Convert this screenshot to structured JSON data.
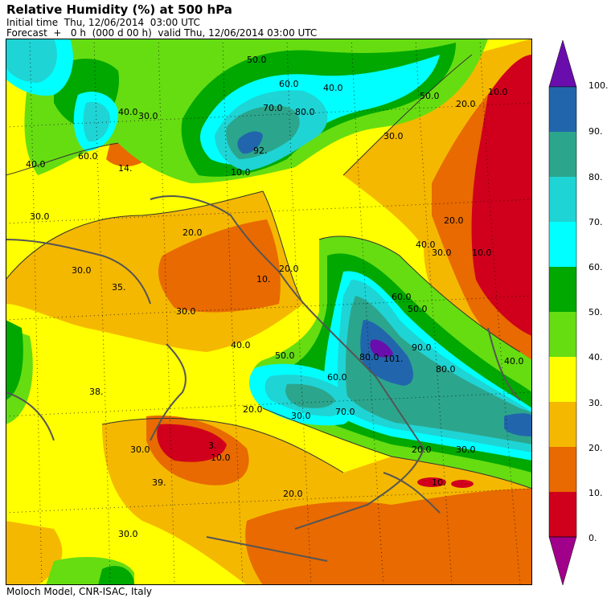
{
  "header": {
    "title": "Relative Humidity (%) at 500 hPa",
    "initial_time": "Initial time  Thu, 12/06/2014  03:00 UTC",
    "forecast": "Forecast  +   0 h  (000 d 00 h)  valid Thu, 12/06/2014 03:00 UTC"
  },
  "footer": "Moloch Model, CNR-ISAC, Italy",
  "colorbar": {
    "labels": [
      "100.",
      "90.",
      "80.",
      "70.",
      "60.",
      "50.",
      "40.",
      "30.",
      "20.",
      "10.",
      "0."
    ],
    "colors": [
      "#6a0dad",
      "#2166ac",
      "#2ca58d",
      "#1fd4d4",
      "#00ffff",
      "#00a800",
      "#66dd11",
      "#ffff00",
      "#f5b800",
      "#e86a00",
      "#d0001c",
      "#a0008a"
    ]
  },
  "map": {
    "contour_labels": [
      "50.0",
      "60.0",
      "70.0",
      "80.0",
      "92.",
      "10.0",
      "40.0",
      "30.0",
      "60.0",
      "14.",
      "40.0",
      "30.0",
      "20.0",
      "50.0",
      "40.0",
      "30.0",
      "20.0",
      "10.0",
      "20.0",
      "20.0",
      "10.",
      "35.",
      "30.0",
      "30.0",
      "40.0",
      "50.0",
      "60.0",
      "70.0",
      "80.0",
      "101.",
      "90.0",
      "80.0",
      "60.0",
      "50.0",
      "40.0",
      "30.0",
      "20.0",
      "10.0",
      "3.",
      "38.",
      "30.0",
      "39.",
      "30.0",
      "20.0",
      "30.0",
      "10.",
      "40.0",
      "20.0",
      "10.0",
      "30.0"
    ]
  }
}
